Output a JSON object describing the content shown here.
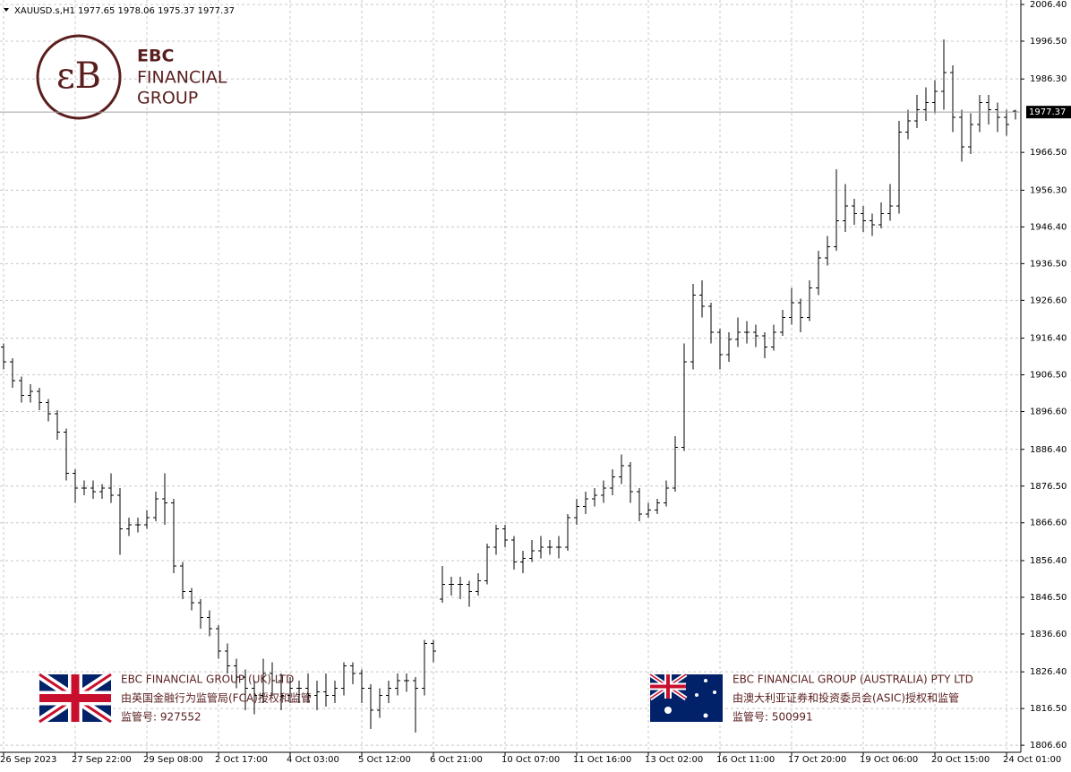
{
  "chart_data": {
    "type": "ohlc",
    "title": "XAUUSD.s,H1  1977.65 1978.06 1975.37 1977.37",
    "categories": [
      "26 Sep 2023",
      null,
      null,
      null,
      null,
      null,
      null,
      null,
      "27 Sep 22:00",
      null,
      null,
      null,
      null,
      null,
      null,
      null,
      "29 Sep 08:00",
      null,
      null,
      null,
      null,
      null,
      null,
      null,
      "2 Oct 17:00",
      null,
      null,
      null,
      null,
      null,
      null,
      null,
      "4 Oct 03:00",
      null,
      null,
      null,
      null,
      null,
      null,
      null,
      "5 Oct 12:00",
      null,
      null,
      null,
      null,
      null,
      null,
      null,
      "6 Oct 21:00",
      null,
      null,
      null,
      null,
      null,
      null,
      null,
      "10 Oct 07:00",
      null,
      null,
      null,
      null,
      null,
      null,
      null,
      "11 Oct 16:00",
      null,
      null,
      null,
      null,
      null,
      null,
      null,
      "13 Oct 02:00",
      null,
      null,
      null,
      null,
      null,
      null,
      null,
      "16 Oct 11:00",
      null,
      null,
      null,
      null,
      null,
      null,
      null,
      "17 Oct 20:00",
      null,
      null,
      null,
      null,
      null,
      null,
      null,
      "19 Oct 06:00",
      null,
      null,
      null,
      null,
      null,
      null,
      null,
      "20 Oct 15:00",
      null,
      null,
      null,
      null,
      null,
      null,
      null,
      "24 Oct 01:00",
      null
    ],
    "bars": [
      [
        1914,
        1915,
        1908,
        1910
      ],
      [
        1910,
        1911,
        1903,
        1905
      ],
      [
        1905,
        1906,
        1899,
        1901
      ],
      [
        1901,
        1904,
        1899,
        1902
      ],
      [
        1902,
        1903,
        1897,
        1899
      ],
      [
        1899,
        1900,
        1894,
        1896
      ],
      [
        1896,
        1897,
        1889,
        1891
      ],
      [
        1891,
        1892,
        1878,
        1880
      ],
      [
        1880,
        1881,
        1872,
        1876
      ],
      [
        1876,
        1878,
        1874,
        1876
      ],
      [
        1876,
        1878,
        1873,
        1875
      ],
      [
        1875,
        1877,
        1873,
        1876
      ],
      [
        1876,
        1880,
        1872,
        1874
      ],
      [
        1874,
        1876,
        1858,
        1865
      ],
      [
        1865,
        1868,
        1863,
        1866
      ],
      [
        1866,
        1868,
        1864,
        1866
      ],
      [
        1866,
        1870,
        1865,
        1868
      ],
      [
        1868,
        1875,
        1867,
        1873
      ],
      [
        1873,
        1880,
        1866,
        1872
      ],
      [
        1872,
        1873,
        1853,
        1855
      ],
      [
        1855,
        1856,
        1846,
        1848
      ],
      [
        1848,
        1849,
        1843,
        1845
      ],
      [
        1845,
        1846,
        1838,
        1841
      ],
      [
        1841,
        1843,
        1836,
        1838
      ],
      [
        1838,
        1839,
        1830,
        1832
      ],
      [
        1832,
        1834,
        1826,
        1828
      ],
      [
        1828,
        1830,
        1822,
        1825
      ],
      [
        1825,
        1827,
        1816,
        1822
      ],
      [
        1822,
        1824,
        1815,
        1820
      ],
      [
        1820,
        1830,
        1818,
        1826
      ],
      [
        1826,
        1829,
        1820,
        1824
      ],
      [
        1824,
        1826,
        1816,
        1820
      ],
      [
        1820,
        1825,
        1818,
        1822
      ],
      [
        1822,
        1824,
        1818,
        1822
      ],
      [
        1822,
        1826,
        1818,
        1820
      ],
      [
        1820,
        1824,
        1816,
        1821
      ],
      [
        1821,
        1826,
        1817,
        1820
      ],
      [
        1820,
        1824,
        1818,
        1822
      ],
      [
        1822,
        1829,
        1820,
        1828
      ],
      [
        1828,
        1829,
        1823,
        1826
      ],
      [
        1826,
        1827,
        1818,
        1822
      ],
      [
        1822,
        1823,
        1811,
        1816
      ],
      [
        1816,
        1822,
        1814,
        1820
      ],
      [
        1820,
        1824,
        1818,
        1822
      ],
      [
        1822,
        1826,
        1820,
        1824
      ],
      [
        1824,
        1826,
        1821,
        1824
      ],
      [
        1824,
        1825,
        1810,
        1822
      ],
      [
        1822,
        1835,
        1820,
        1834
      ],
      [
        1834,
        1835,
        1829,
        1832
      ],
      [
        1846,
        1855,
        1845,
        1850
      ],
      [
        1850,
        1852,
        1847,
        1850
      ],
      [
        1850,
        1852,
        1846,
        1850
      ],
      [
        1850,
        1851,
        1844,
        1848
      ],
      [
        1848,
        1853,
        1847,
        1851
      ],
      [
        1851,
        1861,
        1850,
        1860
      ],
      [
        1860,
        1866,
        1858,
        1865
      ],
      [
        1865,
        1866,
        1860,
        1862
      ],
      [
        1862,
        1863,
        1854,
        1856
      ],
      [
        1856,
        1859,
        1853,
        1857
      ],
      [
        1857,
        1862,
        1856,
        1859
      ],
      [
        1859,
        1863,
        1857,
        1860
      ],
      [
        1860,
        1862,
        1858,
        1860
      ],
      [
        1860,
        1863,
        1857,
        1860
      ],
      [
        1860,
        1869,
        1859,
        1868
      ],
      [
        1868,
        1873,
        1866,
        1871
      ],
      [
        1871,
        1875,
        1869,
        1873
      ],
      [
        1873,
        1876,
        1871,
        1874
      ],
      [
        1874,
        1878,
        1872,
        1876
      ],
      [
        1876,
        1881,
        1874,
        1879
      ],
      [
        1879,
        1885,
        1877,
        1882
      ],
      [
        1882,
        1883,
        1872,
        1875
      ],
      [
        1875,
        1876,
        1867,
        1869
      ],
      [
        1869,
        1872,
        1868,
        1870
      ],
      [
        1870,
        1873,
        1869,
        1872
      ],
      [
        1872,
        1878,
        1871,
        1876
      ],
      [
        1876,
        1890,
        1875,
        1887
      ],
      [
        1887,
        1915,
        1886,
        1910
      ],
      [
        1910,
        1931,
        1908,
        1928
      ],
      [
        1928,
        1932,
        1922,
        1925
      ],
      [
        1925,
        1926,
        1915,
        1918
      ],
      [
        1918,
        1919,
        1908,
        1912
      ],
      [
        1912,
        1918,
        1910,
        1916
      ],
      [
        1916,
        1922,
        1914,
        1918
      ],
      [
        1918,
        1921,
        1915,
        1918
      ],
      [
        1918,
        1920,
        1914,
        1917
      ],
      [
        1917,
        1918,
        1911,
        1914
      ],
      [
        1914,
        1920,
        1913,
        1918
      ],
      [
        1918,
        1924,
        1917,
        1922
      ],
      [
        1922,
        1930,
        1920,
        1926
      ],
      [
        1926,
        1927,
        1918,
        1922
      ],
      [
        1922,
        1932,
        1921,
        1930
      ],
      [
        1930,
        1940,
        1928,
        1938
      ],
      [
        1938,
        1944,
        1936,
        1941
      ],
      [
        1941,
        1962,
        1940,
        1948
      ],
      [
        1948,
        1958,
        1945,
        1952
      ],
      [
        1952,
        1954,
        1947,
        1950
      ],
      [
        1950,
        1952,
        1945,
        1948
      ],
      [
        1948,
        1950,
        1944,
        1947
      ],
      [
        1947,
        1953,
        1946,
        1950
      ],
      [
        1950,
        1958,
        1948,
        1952
      ],
      [
        1952,
        1975,
        1950,
        1972
      ],
      [
        1972,
        1978,
        1970,
        1975
      ],
      [
        1975,
        1982,
        1973,
        1978
      ],
      [
        1978,
        1984,
        1975,
        1980
      ],
      [
        1980,
        1986,
        1977,
        1983
      ],
      [
        1983,
        1997,
        1978,
        1988
      ],
      [
        1988,
        1990,
        1972,
        1976
      ],
      [
        1976,
        1978,
        1964,
        1968
      ],
      [
        1968,
        1977,
        1966,
        1974
      ],
      [
        1974,
        1982,
        1972,
        1980
      ],
      [
        1980,
        1982,
        1974,
        1978
      ],
      [
        1978,
        1980,
        1972,
        1976
      ],
      [
        1976,
        1978,
        1971,
        1974
      ],
      [
        1977.65,
        1978.06,
        1975.37,
        1977.37
      ]
    ],
    "color": "#000000",
    "last_price": 1977.37,
    "ylim": [
      1804.7,
      2007.6
    ],
    "yticks": [
      {
        "value": 2006.4,
        "label": "2006.40"
      },
      {
        "value": 1996.5,
        "label": "1996.50"
      },
      {
        "value": 1986.3,
        "label": "1986.30"
      },
      {
        "value": 1966.5,
        "label": "1966.50"
      },
      {
        "value": 1956.3,
        "label": "1956.30"
      },
      {
        "value": 1946.4,
        "label": "1946.40"
      },
      {
        "value": 1936.5,
        "label": "1936.50"
      },
      {
        "value": 1926.6,
        "label": "1926.60"
      },
      {
        "value": 1916.4,
        "label": "1916.40"
      },
      {
        "value": 1906.5,
        "label": "1906.50"
      },
      {
        "value": 1896.6,
        "label": "1896.60"
      },
      {
        "value": 1886.4,
        "label": "1886.40"
      },
      {
        "value": 1876.5,
        "label": "1876.50"
      },
      {
        "value": 1866.6,
        "label": "1866.60"
      },
      {
        "value": 1856.4,
        "label": "1856.40"
      },
      {
        "value": 1846.5,
        "label": "1846.50"
      },
      {
        "value": 1836.6,
        "label": "1836.60"
      },
      {
        "value": 1826.4,
        "label": "1826.40"
      },
      {
        "value": 1816.5,
        "label": "1816.50"
      },
      {
        "value": 1806.6,
        "label": "1806.60"
      }
    ],
    "grid": true
  },
  "logo": {
    "line1": "EBC",
    "line2": "FINANCIAL",
    "line3": "GROUP"
  },
  "licenses": [
    {
      "name": "EBC FINANCIAL GROUP (UK) LTD",
      "text": "由英国金融行为监管局(FCA)授权和监管",
      "number": "监管号: 927552"
    },
    {
      "name": "EBC FINANCIAL GROUP (AUSTRALIA) PTY LTD",
      "text": "由澳大利亚证券和投资委员会(ASIC)授权和监管",
      "number": "监管号: 500991"
    }
  ]
}
